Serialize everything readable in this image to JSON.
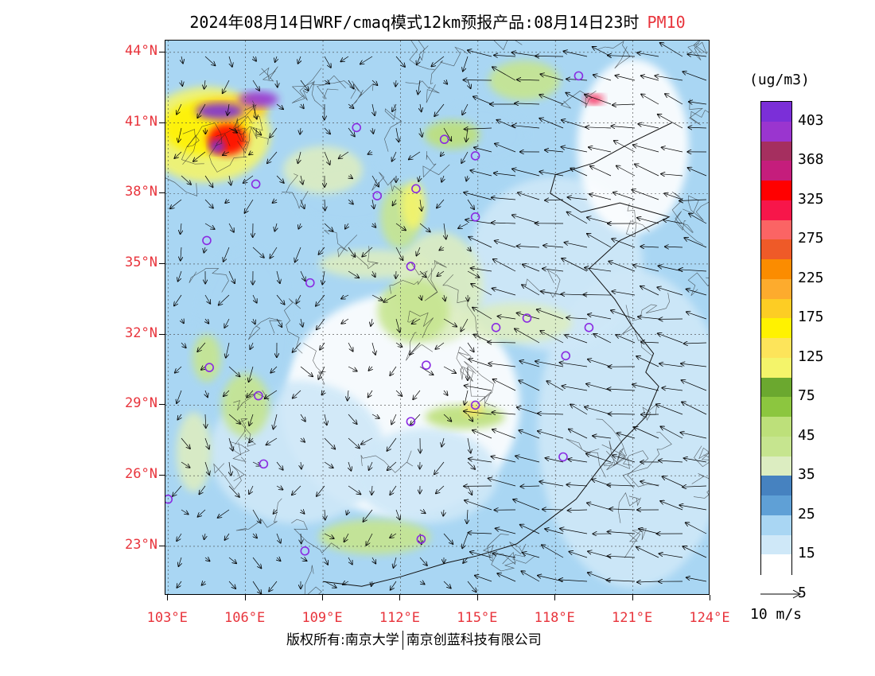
{
  "title": {
    "prefix": "2024年08月14日WRF/cmaq模式12km预报产品:08月14日23时",
    "variable": "PM10"
  },
  "axes": {
    "lat_labels": [
      "44°N",
      "41°N",
      "38°N",
      "35°N",
      "32°N",
      "29°N",
      "26°N",
      "23°N"
    ],
    "lat_values": [
      44,
      41,
      38,
      35,
      32,
      29,
      26,
      23
    ],
    "lon_labels": [
      "103°E",
      "106°E",
      "109°E",
      "112°E",
      "115°E",
      "118°E",
      "121°E",
      "124°E"
    ],
    "lon_values": [
      103,
      106,
      109,
      112,
      115,
      118,
      121,
      124
    ],
    "lon_range": [
      102.9,
      124
    ],
    "lat_range": [
      20.9,
      44.5
    ]
  },
  "colorbar": {
    "unit": "(ug/m3)",
    "labels": [
      "403",
      "368",
      "325",
      "275",
      "225",
      "175",
      "125",
      "75",
      "45",
      "35",
      "25",
      "15",
      "5"
    ],
    "colors": [
      "#7b2fd8",
      "#9a35cf",
      "#a52f5f",
      "#c51d7c",
      "#ff0000",
      "#f7164a",
      "#fb6464",
      "#ef5a28",
      "#fb8c00",
      "#fdab2d",
      "#fdcd24",
      "#fff200",
      "#fde45a",
      "#f4f46a",
      "#6ba82f",
      "#8cc63f",
      "#bde07a",
      "#c6e58f",
      "#dcedc1",
      "#4682c0",
      "#5fa0d6",
      "#a9d6f3",
      "#cfe8f8",
      "#ffffff"
    ]
  },
  "wind_reference": {
    "label": "10 m/s",
    "speed_ms": 10
  },
  "stations": [
    {
      "lon": 118.9,
      "lat": 43.0
    },
    {
      "lon": 110.3,
      "lat": 40.8
    },
    {
      "lon": 113.7,
      "lat": 40.3
    },
    {
      "lon": 114.9,
      "lat": 39.6
    },
    {
      "lon": 106.4,
      "lat": 38.4
    },
    {
      "lon": 111.1,
      "lat": 37.9
    },
    {
      "lon": 112.6,
      "lat": 38.2
    },
    {
      "lon": 114.9,
      "lat": 37.0
    },
    {
      "lon": 104.5,
      "lat": 36.0
    },
    {
      "lon": 112.4,
      "lat": 34.9
    },
    {
      "lon": 108.5,
      "lat": 34.2
    },
    {
      "lon": 116.9,
      "lat": 32.7
    },
    {
      "lon": 115.7,
      "lat": 32.3
    },
    {
      "lon": 119.3,
      "lat": 32.3
    },
    {
      "lon": 118.4,
      "lat": 31.1
    },
    {
      "lon": 104.6,
      "lat": 30.6
    },
    {
      "lon": 113.0,
      "lat": 30.7
    },
    {
      "lon": 106.5,
      "lat": 29.4
    },
    {
      "lon": 114.9,
      "lat": 29.0
    },
    {
      "lon": 112.4,
      "lat": 28.3
    },
    {
      "lon": 118.3,
      "lat": 26.8
    },
    {
      "lon": 106.7,
      "lat": 26.5
    },
    {
      "lon": 103.0,
      "lat": 25.0
    },
    {
      "lon": 112.8,
      "lat": 23.3
    },
    {
      "lon": 108.3,
      "lat": 22.8
    }
  ],
  "copyright": {
    "part1": "版权所有:南京大学",
    "part2": "南京创蓝科技有限公司"
  }
}
